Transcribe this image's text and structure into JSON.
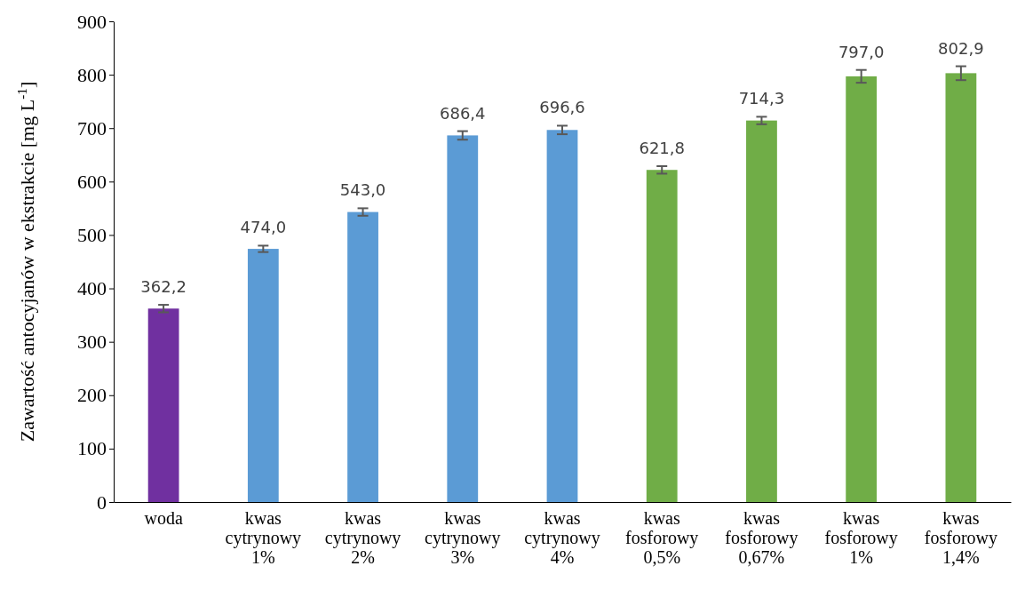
{
  "chart_data": {
    "type": "bar",
    "ylabel": "Zawartość antocyjanów w ekstrakcie [mg L$^{-1}$]",
    "categories": [
      "woda",
      "kwas cytrynowy 1%",
      "kwas cytrynowy 2%",
      "kwas cytrynowy 3%",
      "kwas cytrynowy 4%",
      "kwas fosforowy 0,5%",
      "kwas fosforowy 0,67%",
      "kwas fosforowy 1%",
      "kwas fosforowy 1,4%"
    ],
    "values": [
      362.2,
      474.0,
      543.0,
      686.4,
      696.6,
      621.8,
      714.3,
      797.0,
      802.9
    ],
    "colors": [
      "#7030a0",
      "#5b9bd5",
      "#5b9bd5",
      "#5b9bd5",
      "#5b9bd5",
      "#70ad47",
      "#70ad47",
      "#70ad47",
      "#70ad47"
    ],
    "errors": [
      7,
      6,
      7,
      8,
      8,
      7,
      7,
      12,
      13
    ],
    "value_labels": [
      "362,2",
      "474,0",
      "543,0",
      "686,4",
      "696,6",
      "621,8",
      "714,3",
      "797,0",
      "802,9"
    ],
    "ylim": [
      0,
      900
    ],
    "yticks": [
      0,
      100,
      200,
      300,
      400,
      500,
      600,
      700,
      800,
      900
    ],
    "grid": false
  }
}
